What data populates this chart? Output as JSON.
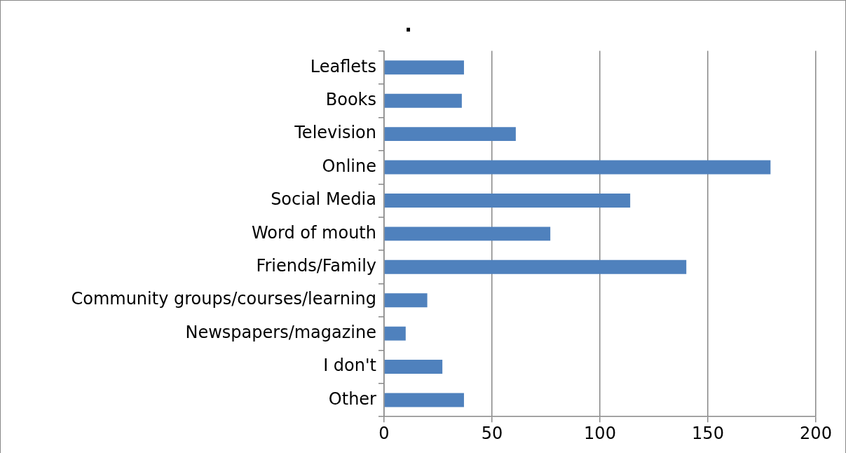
{
  "chart_data": {
    "type": "bar",
    "orientation": "horizontal",
    "title": ".",
    "categories": [
      "Leaflets",
      "Books",
      "Television",
      "Online",
      "Social Media",
      "Word of mouth",
      "Friends/Family",
      "Community groups/courses/learning",
      "Newspapers/magazine",
      "I don't",
      "Other"
    ],
    "values": [
      37,
      36,
      61,
      179,
      114,
      77,
      140,
      20,
      10,
      27,
      37
    ],
    "color": "#4f81bd",
    "xlim": [
      0,
      200
    ],
    "xticks": [
      0,
      50,
      100,
      150,
      200
    ],
    "grid": "x",
    "legend": false
  }
}
